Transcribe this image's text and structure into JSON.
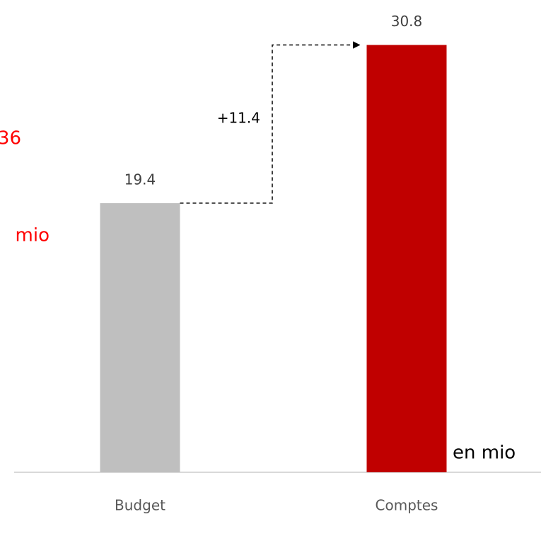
{
  "chart_data": {
    "type": "bar",
    "categories": [
      "Budget",
      "Comptes"
    ],
    "values": [
      19.4,
      30.8
    ],
    "colors": [
      "#bfbfbf",
      "#c00000"
    ],
    "ylim": [
      0,
      32
    ],
    "difference_label": "+11.4",
    "unit_note": "en mio",
    "clipped_notes": [
      "36",
      "mio"
    ]
  }
}
